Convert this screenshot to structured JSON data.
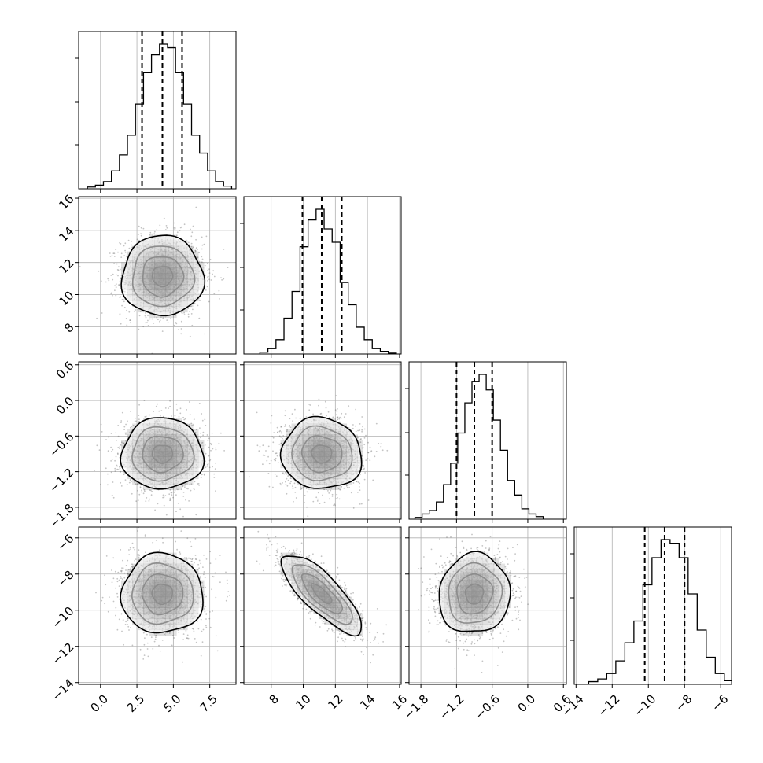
{
  "chart_data": {
    "type": "corner",
    "parameters": 4,
    "axes": [
      {
        "range": [
          -1.5,
          9.3
        ],
        "ticks": [
          0.0,
          2.5,
          5.0,
          7.5
        ],
        "tick_labels": [
          "0.0",
          "2.5",
          "5.0",
          "7.5"
        ]
      },
      {
        "range": [
          6.3,
          16.1
        ],
        "ticks": [
          8,
          10,
          12,
          14,
          16
        ],
        "tick_labels": [
          "8",
          "10",
          "12",
          "14",
          "16"
        ]
      },
      {
        "range": [
          -2.0,
          0.65
        ],
        "ticks": [
          -1.8,
          -1.2,
          -0.6,
          0.0,
          0.6
        ],
        "tick_labels": [
          "−1.8",
          "−1.2",
          "−0.6",
          "0.0",
          "0.6"
        ]
      },
      {
        "range": [
          -14.1,
          -5.4
        ],
        "ticks": [
          -14,
          -12,
          -10,
          -8,
          -6
        ],
        "tick_labels": [
          "−14",
          "−12",
          "−10",
          "−8",
          "−6"
        ]
      }
    ],
    "quantiles": [
      [
        2.85,
        4.25,
        5.6
      ],
      [
        9.95,
        11.15,
        12.4
      ],
      [
        -1.2,
        -0.9,
        -0.6
      ],
      [
        -10.2,
        -9.1,
        -8.0
      ]
    ],
    "histograms": [
      {
        "bins": [
          -0.9,
          -0.35,
          0.2,
          0.75,
          1.3,
          1.85,
          2.4,
          2.95,
          3.5,
          4.05,
          4.6,
          5.15,
          5.7,
          6.25,
          6.8,
          7.35,
          7.9,
          8.45
        ],
        "counts": [
          2,
          4,
          8,
          20,
          38,
          60,
          95,
          130,
          150,
          162,
          158,
          130,
          95,
          60,
          40,
          20,
          8,
          3
        ]
      },
      {
        "bins": [
          7.3,
          7.8,
          8.3,
          8.8,
          9.3,
          9.8,
          10.3,
          10.8,
          11.3,
          11.8,
          12.3,
          12.8,
          13.3,
          13.8,
          14.3,
          14.8,
          15.3
        ],
        "counts": [
          2,
          6,
          16,
          40,
          70,
          120,
          150,
          162,
          140,
          125,
          80,
          55,
          30,
          16,
          6,
          3,
          1
        ]
      },
      {
        "bins": [
          -1.9,
          -1.78,
          -1.66,
          -1.54,
          -1.42,
          -1.3,
          -1.18,
          -1.06,
          -0.94,
          -0.82,
          -0.7,
          -0.58,
          -0.46,
          -0.34,
          -0.22,
          -0.1,
          0.02,
          0.14
        ],
        "counts": [
          2,
          6,
          10,
          20,
          40,
          65,
          100,
          135,
          160,
          168,
          150,
          115,
          80,
          45,
          28,
          12,
          6,
          3
        ]
      },
      {
        "bins": [
          -13.3,
          -12.8,
          -12.3,
          -11.8,
          -11.3,
          -10.8,
          -10.3,
          -9.8,
          -9.3,
          -8.8,
          -8.3,
          -7.8,
          -7.3,
          -6.8,
          -6.3,
          -5.8
        ],
        "counts": [
          3,
          6,
          12,
          26,
          46,
          70,
          110,
          140,
          160,
          156,
          140,
          100,
          60,
          30,
          12,
          4
        ]
      }
    ],
    "pair_stats": [
      {
        "x": 0,
        "y": 1,
        "mean_x": 4.25,
        "mean_y": 11.15,
        "sd_x": 1.4,
        "sd_y": 1.25,
        "rho": 0.0
      },
      {
        "x": 0,
        "y": 2,
        "mean_x": 4.25,
        "mean_y": -0.9,
        "sd_x": 1.4,
        "sd_y": 0.3,
        "rho": 0.0
      },
      {
        "x": 1,
        "y": 2,
        "mean_x": 11.15,
        "mean_y": -0.9,
        "sd_x": 1.25,
        "sd_y": 0.3,
        "rho": -0.05
      },
      {
        "x": 0,
        "y": 3,
        "mean_x": 4.25,
        "mean_y": -9.1,
        "sd_x": 1.4,
        "sd_y": 1.1,
        "rho": 0.0
      },
      {
        "x": 1,
        "y": 3,
        "mean_x": 11.15,
        "mean_y": -9.1,
        "sd_x": 1.25,
        "sd_y": 1.1,
        "rho": -0.8
      },
      {
        "x": 2,
        "y": 3,
        "mean_x": -0.9,
        "mean_y": -9.1,
        "sd_x": 0.3,
        "sd_y": 1.1,
        "rho": 0.05
      }
    ],
    "contour_levels_sigma": [
      0.5,
      1.0,
      1.5,
      2.0
    ],
    "grid": true,
    "colors": {
      "axes": "#000000",
      "grid": "#b0b0b0",
      "points": "#555555",
      "density": "#000000"
    }
  }
}
